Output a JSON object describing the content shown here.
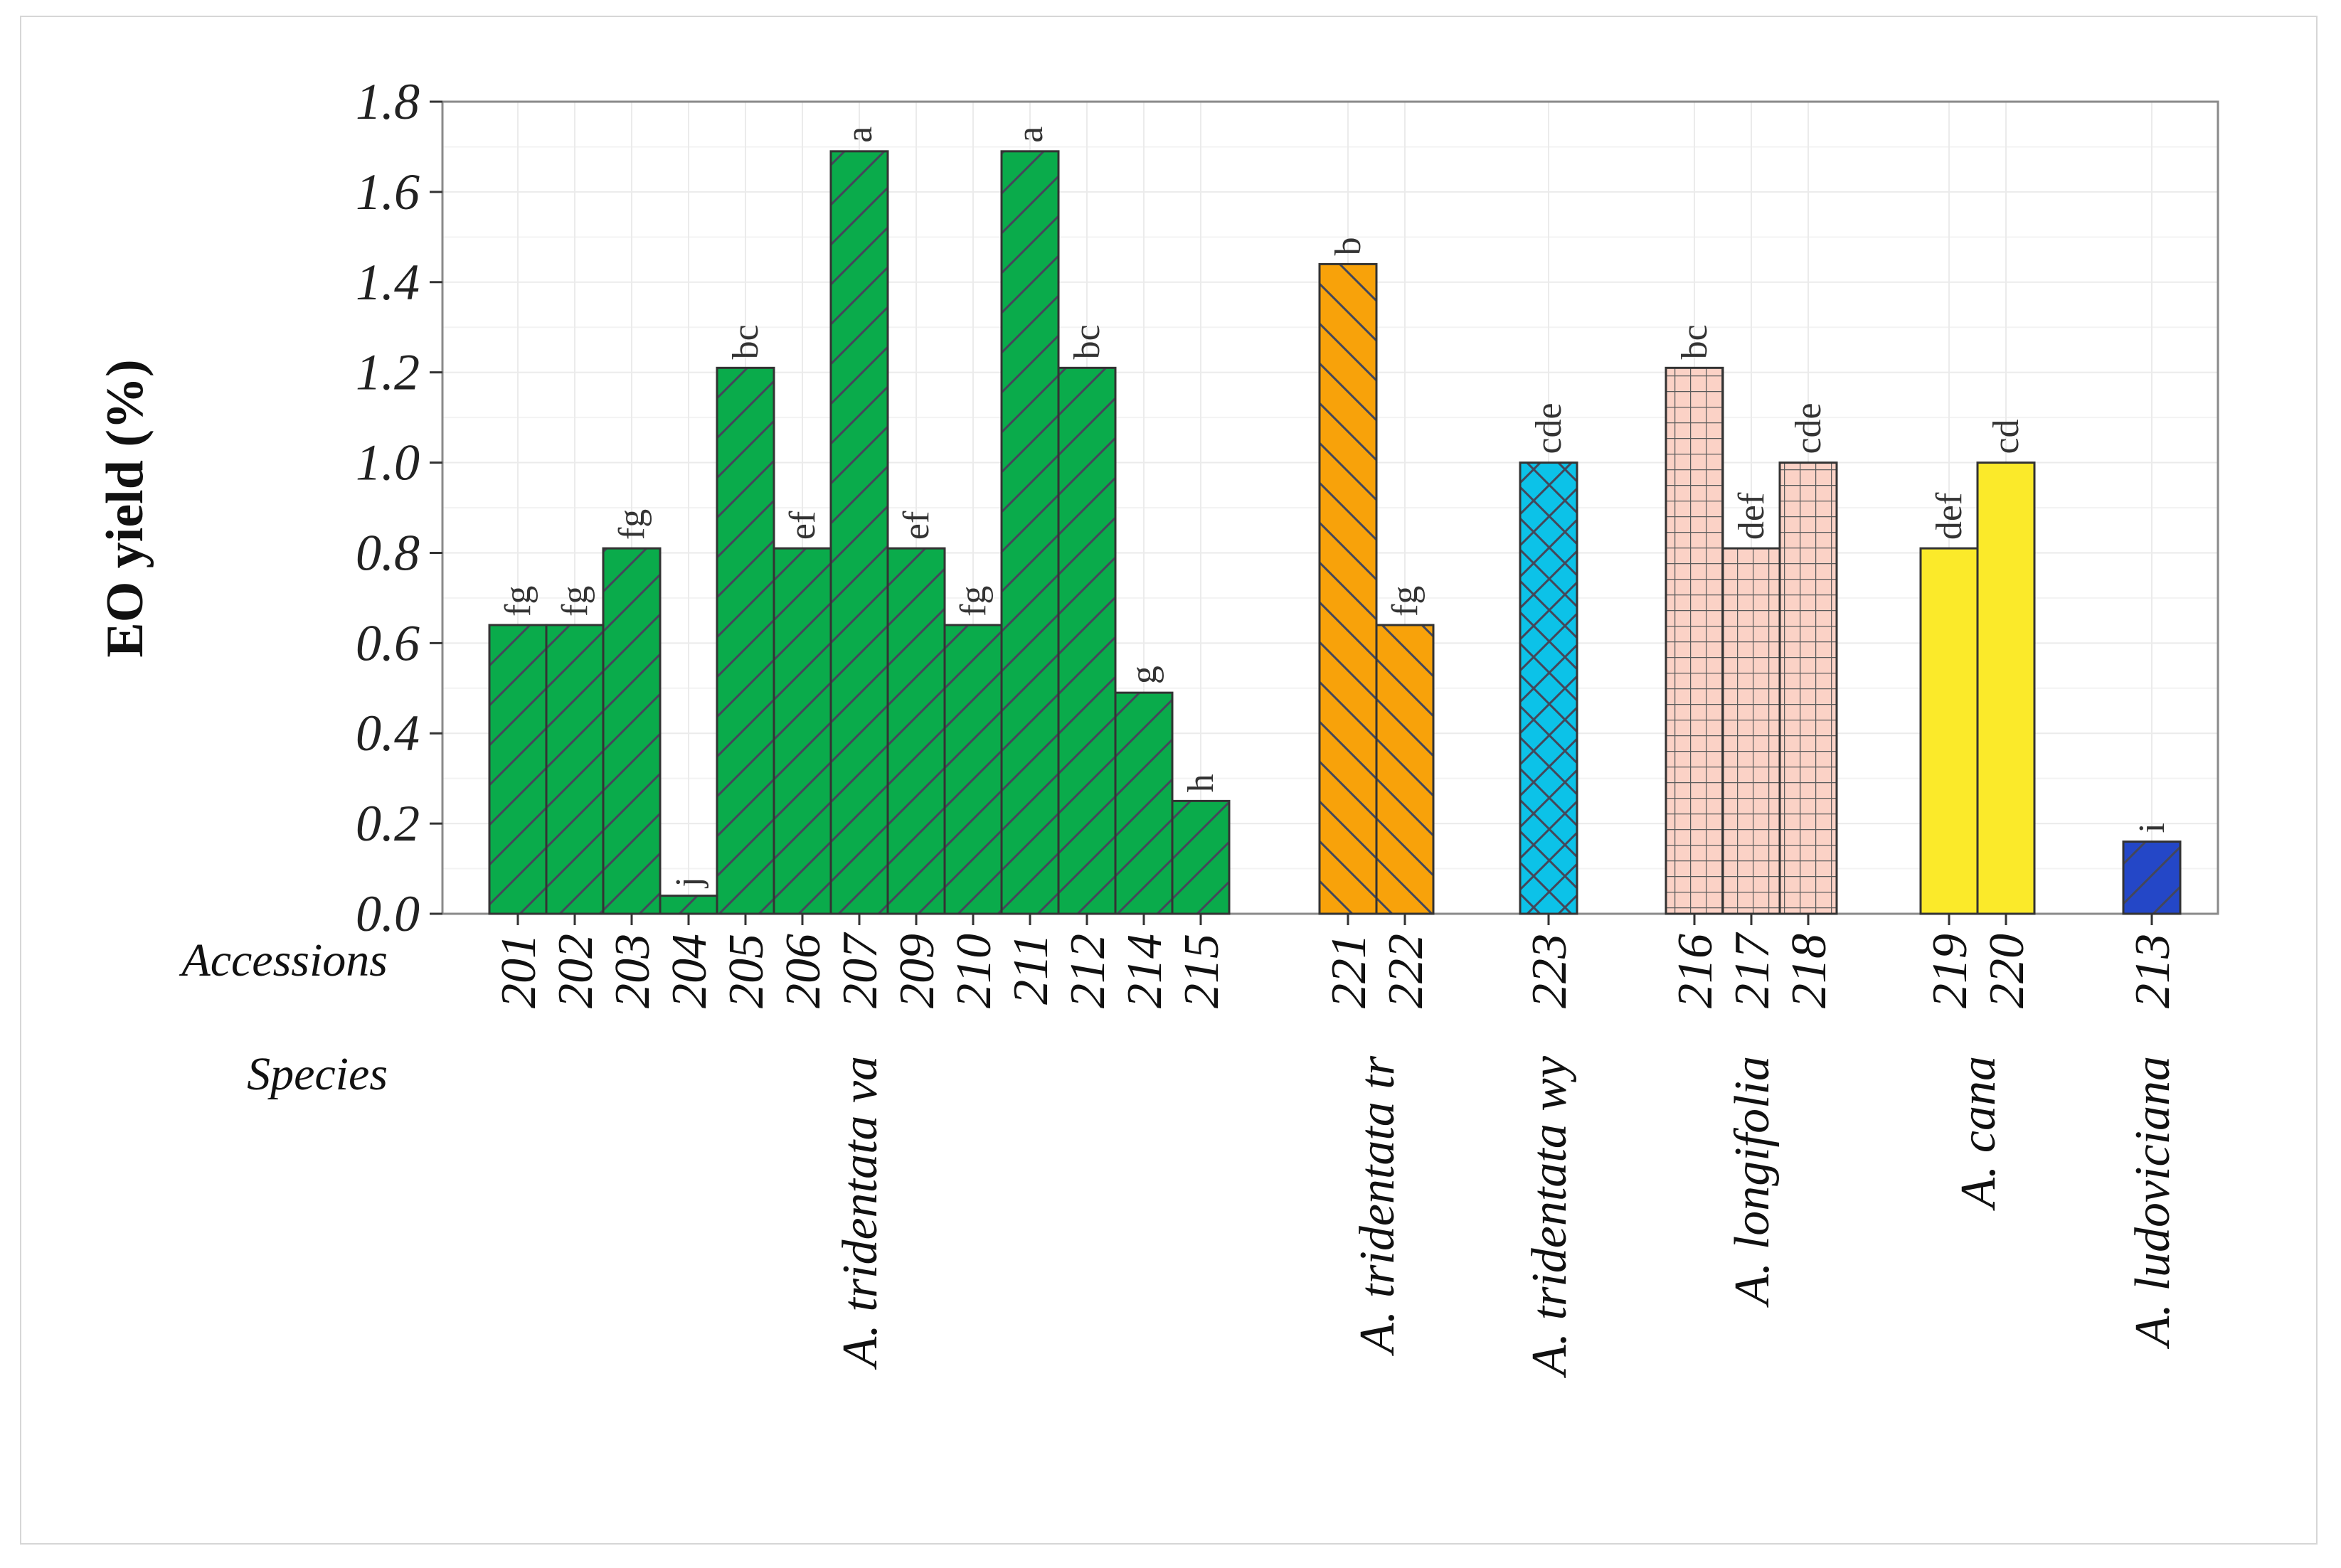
{
  "chart_data": {
    "type": "bar",
    "ylabel": "EO yield (%)",
    "ylim": [
      0,
      1.8
    ],
    "yticks": [
      "0.0",
      "0.2",
      "0.4",
      "0.6",
      "0.8",
      "1.0",
      "1.2",
      "1.4",
      "1.6",
      "1.8"
    ],
    "row_labels": {
      "accessions": "Accessions",
      "species": "Species"
    },
    "groups": [
      {
        "species": "A. tridentata va",
        "color": "#0aab4b",
        "pattern": "diag-up",
        "bars": [
          {
            "accession": "201",
            "value": 0.64,
            "label": "fg"
          },
          {
            "accession": "202",
            "value": 0.64,
            "label": "fg"
          },
          {
            "accession": "203",
            "value": 0.81,
            "label": "fg"
          },
          {
            "accession": "204",
            "value": 0.04,
            "label": "j"
          },
          {
            "accession": "205",
            "value": 1.21,
            "label": "bc"
          },
          {
            "accession": "206",
            "value": 0.81,
            "label": "ef"
          },
          {
            "accession": "207",
            "value": 1.69,
            "label": "a"
          },
          {
            "accession": "209",
            "value": 0.81,
            "label": "ef"
          },
          {
            "accession": "210",
            "value": 0.64,
            "label": "fg"
          },
          {
            "accession": "211",
            "value": 1.69,
            "label": "a"
          },
          {
            "accession": "212",
            "value": 1.21,
            "label": "bc"
          },
          {
            "accession": "214",
            "value": 0.49,
            "label": "g"
          },
          {
            "accession": "215",
            "value": 0.25,
            "label": "h"
          }
        ]
      },
      {
        "species": "A. tridentata tr",
        "color": "#f8a20a",
        "pattern": "diag-down",
        "bars": [
          {
            "accession": "221",
            "value": 1.44,
            "label": "b"
          },
          {
            "accession": "222",
            "value": 0.64,
            "label": "fg"
          }
        ]
      },
      {
        "species": "A. tridentata wy",
        "color": "#0cc2e8",
        "pattern": "crosshatch",
        "bars": [
          {
            "accession": "223",
            "value": 1.0,
            "label": "cde"
          }
        ]
      },
      {
        "species": "A. longifolia",
        "color": "#fbd2c6",
        "pattern": "grid",
        "bars": [
          {
            "accession": "216",
            "value": 1.21,
            "label": "bc"
          },
          {
            "accession": "217",
            "value": 0.81,
            "label": "def"
          },
          {
            "accession": "218",
            "value": 1.0,
            "label": "cde"
          }
        ]
      },
      {
        "species": "A. cana",
        "color": "#fbea2a",
        "pattern": "none",
        "bars": [
          {
            "accession": "219",
            "value": 0.81,
            "label": "def"
          },
          {
            "accession": "220",
            "value": 1.0,
            "label": "cd"
          }
        ]
      },
      {
        "species": "A. ludoviciana",
        "color": "#2447c7",
        "pattern": "diag-up",
        "bars": [
          {
            "accession": "213",
            "value": 0.16,
            "label": "i"
          }
        ]
      }
    ]
  }
}
